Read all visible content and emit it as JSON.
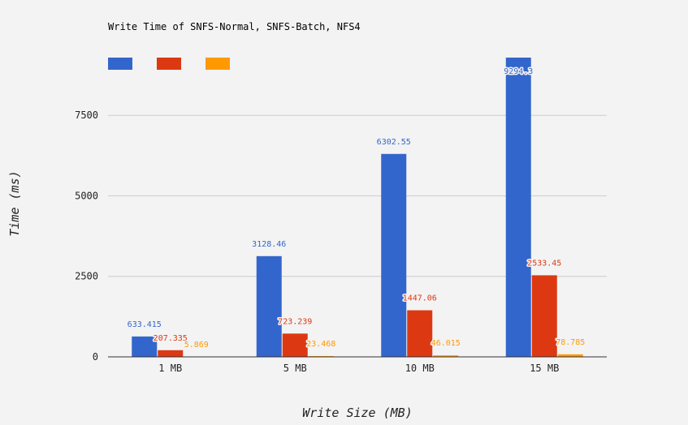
{
  "chart_data": {
    "type": "bar",
    "title": "Write Time of SNFS-Normal, SNFS-Batch, NFS4",
    "xlabel": "Write Size (MB)",
    "ylabel": "Time (ms)",
    "categories": [
      "1 MB",
      "5 MB",
      "10 MB",
      "15 MB"
    ],
    "series": [
      {
        "values": [
          633.415,
          3128.46,
          6302.55,
          9294.3
        ],
        "labels": [
          "633.415",
          "3128.46",
          "6302.55",
          "9294.3"
        ],
        "color": "#3366cc"
      },
      {
        "values": [
          207.335,
          723.239,
          1447.06,
          2533.45
        ],
        "labels": [
          "207.335",
          "723.239",
          "1447.06",
          "2533.45"
        ],
        "color": "#dc3912"
      },
      {
        "values": [
          5.869,
          23.468,
          46.015,
          78.785
        ],
        "labels": [
          "5.869",
          "23.468",
          "46.015",
          "78.785"
        ],
        "color": "#ff9900"
      }
    ],
    "yticks": [
      0,
      2500,
      5000,
      7500
    ],
    "ylim": [
      0,
      9294.3
    ],
    "grid": true,
    "legend": "top-left"
  }
}
